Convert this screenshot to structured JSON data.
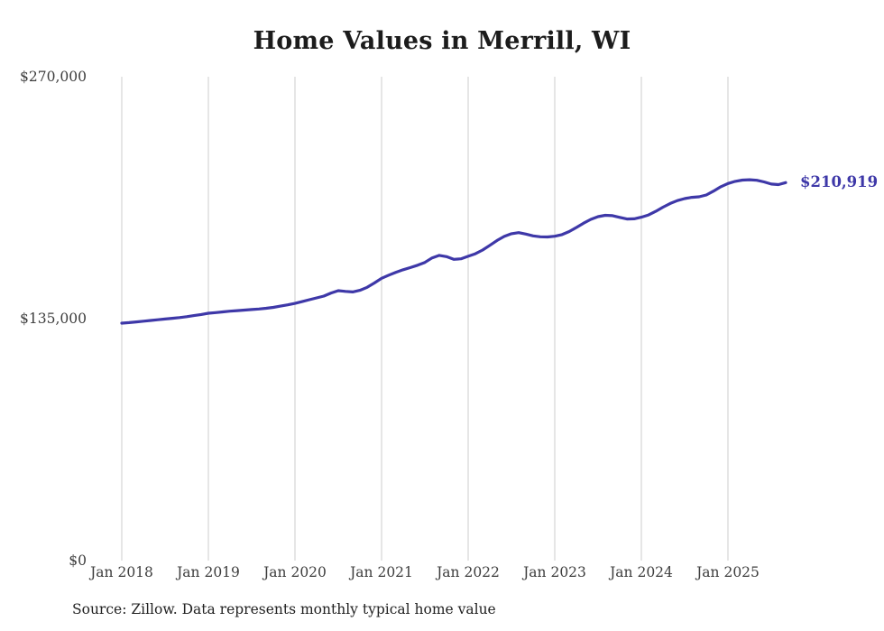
{
  "chart_data": {
    "type": "line",
    "title": "Home Values in Merrill, WI",
    "source_note": "Source: Zillow. Data represents monthly typical home value",
    "end_label": "$210,919",
    "latest_value": 210919,
    "ylim": [
      0,
      270000
    ],
    "grid": "vertical-only",
    "legend": "none",
    "line_color": "#3e38a8",
    "grid_color": "#cccccc",
    "end_label_color": "#3e38a8",
    "y_ticks": [
      {
        "label": "$0",
        "value": 0
      },
      {
        "label": "$135,000",
        "value": 135000
      },
      {
        "label": "$270,000",
        "value": 270000
      }
    ],
    "x_ticks": [
      {
        "label": "Jan 2018",
        "month_index": 0
      },
      {
        "label": "Jan 2019",
        "month_index": 12
      },
      {
        "label": "Jan 2020",
        "month_index": 24
      },
      {
        "label": "Jan 2021",
        "month_index": 36
      },
      {
        "label": "Jan 2022",
        "month_index": 48
      },
      {
        "label": "Jan 2023",
        "month_index": 60
      },
      {
        "label": "Jan 2024",
        "month_index": 72
      },
      {
        "label": "Jan 2025",
        "month_index": 84
      }
    ],
    "series": [
      {
        "name": "Typical home value",
        "start": "Jan 2018",
        "end": "Sep 2025",
        "frequency": "monthly",
        "values": [
          132500,
          132800,
          133200,
          133600,
          134000,
          134400,
          134800,
          135200,
          135600,
          136100,
          136700,
          137300,
          138000,
          138400,
          138800,
          139200,
          139500,
          139800,
          140100,
          140400,
          140800,
          141300,
          142000,
          142700,
          143500,
          144500,
          145600,
          146600,
          147600,
          149300,
          150600,
          150200,
          149900,
          150800,
          152500,
          154900,
          157500,
          159300,
          160900,
          162300,
          163500,
          164800,
          166400,
          168900,
          170300,
          169600,
          168100,
          168400,
          169800,
          171200,
          173300,
          175900,
          178600,
          180900,
          182400,
          183000,
          182200,
          181200,
          180700,
          180600,
          181000,
          181900,
          183600,
          185900,
          188300,
          190400,
          191900,
          192700,
          192500,
          191500,
          190600,
          190700,
          191600,
          192900,
          194900,
          197200,
          199300,
          200900,
          202000,
          202700,
          203000,
          204000,
          206200,
          208600,
          210400,
          211600,
          212300,
          212500,
          212200,
          211300,
          210100,
          209800,
          210919
        ]
      }
    ]
  }
}
